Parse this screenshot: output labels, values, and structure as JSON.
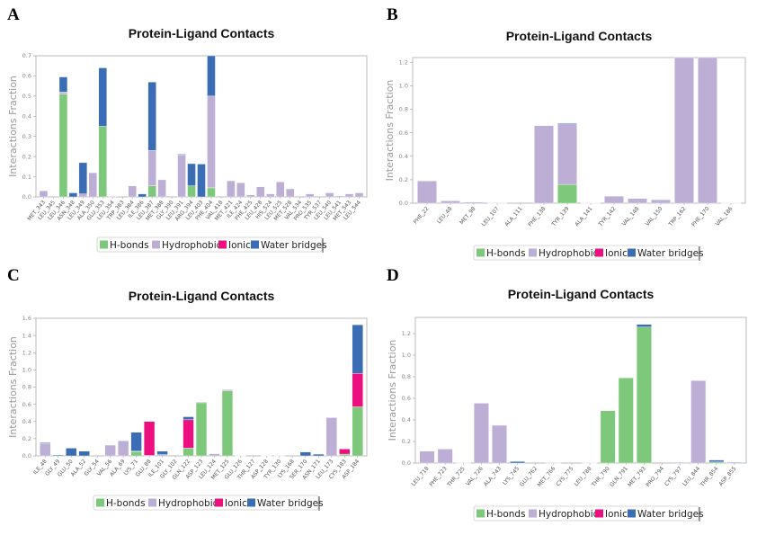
{
  "colors": {
    "H-bonds": "#7dc87b",
    "Hydrophobic": "#bcaed4",
    "Ionic": "#ec0f7f",
    "Water bridges": "#3a6db3"
  },
  "chart_data": [
    {
      "panel": "A",
      "type": "bar",
      "stacked": true,
      "title": "Protein-Ligand Contacts",
      "xlabel": "",
      "ylabel": "Interactions Fraction",
      "ylim": [
        0,
        0.7
      ],
      "yticks": [
        "0.0",
        "0.1",
        "0.2",
        "0.3",
        "0.4",
        "0.5",
        "0.6",
        "0.7"
      ],
      "legend": [
        "H-bonds",
        "Hydrophobic",
        "Ionic",
        "Water bridges"
      ],
      "legend_placement": "bottom-center",
      "categories": [
        "MET_343",
        "LEU_345",
        "LEU_346",
        "ASN_348",
        "LEU_349",
        "ALA_350",
        "GLU_353",
        "LEU_354",
        "TRP_383",
        "LEU_384",
        "ILE_386",
        "LEU_387",
        "MET_388",
        "GLY_390",
        "LEU_391",
        "ARG_394",
        "LEU_403",
        "PHE_404",
        "VAL_418",
        "MET_421",
        "ILE_424",
        "PHE_425",
        "LEU_428",
        "HIS_524",
        "LEU_525",
        "MET_528",
        "VAL_534",
        "PRO_535",
        "TYR_537",
        "LEU_540",
        "LEU_541",
        "MET_543",
        "LEU_544"
      ],
      "series": [
        {
          "name": "H-bonds",
          "values": [
            0,
            0,
            0.51,
            0,
            0,
            0,
            0.35,
            0,
            0,
            0,
            0,
            0.055,
            0,
            0,
            0,
            0.055,
            0,
            0.045,
            0,
            0,
            0,
            0,
            0,
            0,
            0,
            0,
            0,
            0,
            0,
            0,
            0,
            0,
            0
          ]
        },
        {
          "name": "Hydrophobic",
          "values": [
            0.03,
            0,
            0.01,
            0,
            0.015,
            0.12,
            0,
            0.003,
            0,
            0.055,
            0,
            0.175,
            0.085,
            0,
            0.208,
            0,
            0,
            0.455,
            0,
            0.08,
            0.07,
            0.01,
            0.05,
            0.015,
            0.075,
            0.04,
            0,
            0.015,
            0,
            0.02,
            0.005,
            0.015,
            0.02
          ]
        },
        {
          "name": "Ionic",
          "values": [
            0,
            0,
            0,
            0,
            0,
            0,
            0,
            0,
            0,
            0,
            0,
            0,
            0,
            0,
            0,
            0,
            0,
            0,
            0,
            0,
            0,
            0,
            0,
            0,
            0,
            0,
            0,
            0,
            0,
            0,
            0,
            0,
            0
          ]
        },
        {
          "name": "Water bridges",
          "values": [
            0,
            0,
            0.075,
            0.02,
            0.155,
            0,
            0.29,
            0,
            0,
            0,
            0.015,
            0.34,
            0,
            0,
            0.004,
            0.11,
            0.163,
            0.2,
            0,
            0,
            0,
            0,
            0,
            0,
            0,
            0,
            0,
            0,
            0,
            0,
            0,
            0,
            0
          ]
        }
      ]
    },
    {
      "panel": "B",
      "type": "bar",
      "stacked": true,
      "title": "Protein-Ligand Contacts",
      "xlabel": "",
      "ylabel": "Interactions Fraction",
      "ylim": [
        0,
        1.24
      ],
      "yticks": [
        "0.0",
        "0.2",
        "0.4",
        "0.6",
        "0.8",
        "1.0",
        "1.2"
      ],
      "legend": [
        "H-bonds",
        "Hydrophobic",
        "Ionic",
        "Water bridges"
      ],
      "legend_placement": "bottom-center",
      "categories": [
        "PHE_22",
        "LEU_48",
        "MET_98",
        "LEU_107",
        "ALA_111",
        "PHE_138",
        "TYR_139",
        "ALA_141",
        "TYR_142",
        "VAL_148",
        "VAL_150",
        "TRP_162",
        "PHE_170",
        "VAL_186"
      ],
      "series": [
        {
          "name": "H-bonds",
          "values": [
            0,
            0,
            0,
            0,
            0,
            0,
            0.16,
            0,
            0,
            0,
            0,
            0,
            0,
            0
          ]
        },
        {
          "name": "Hydrophobic",
          "values": [
            0.19,
            0.02,
            0.01,
            0.003,
            0,
            0.66,
            0.515,
            0.002,
            0.06,
            0.04,
            0.03,
            1.3,
            1.3,
            0.002
          ]
        },
        {
          "name": "Ionic",
          "values": [
            0,
            0,
            0,
            0,
            0,
            0,
            0,
            0,
            0,
            0,
            0,
            0,
            0,
            0
          ]
        },
        {
          "name": "Water bridges",
          "values": [
            0,
            0,
            0,
            0,
            0,
            0,
            0.007,
            0,
            0,
            0,
            0,
            0,
            0,
            0
          ]
        }
      ]
    },
    {
      "panel": "C",
      "type": "bar",
      "stacked": true,
      "title": "Protein-Ligand Contacts",
      "xlabel": "",
      "ylabel": "Interactions Fraction",
      "ylim": [
        0,
        1.6
      ],
      "yticks": [
        "0.0",
        "0.2",
        "0.4",
        "0.6",
        "0.8",
        "1.0",
        "1.2",
        "1.4",
        "1.6"
      ],
      "legend": [
        "H-bonds",
        "Hydrophobic",
        "Ionic",
        "Water bridges"
      ],
      "legend_placement": "bottom-center",
      "categories": [
        "ILE_48",
        "GLY_49",
        "GLU_50",
        "ALA_52",
        "GLY_54",
        "VAL_56",
        "ALA_69",
        "LYS_71",
        "GLU_88",
        "ILE_101",
        "GLY_102",
        "GLN_122",
        "ASP_123",
        "LEU_124",
        "MET_125",
        "GLU_126",
        "THR_127",
        "ASP_128",
        "TYR_130",
        "LYS_168",
        "SER_170",
        "ASN_171",
        "LEU_173",
        "CYS_183",
        "ASP_184"
      ],
      "series": [
        {
          "name": "H-bonds",
          "values": [
            0,
            0,
            0,
            0,
            0,
            0,
            0,
            0.05,
            0,
            0,
            0,
            0.09,
            0.62,
            0,
            0.755,
            0,
            0,
            0,
            0,
            0,
            0,
            0,
            0,
            0.02,
            0.57
          ]
        },
        {
          "name": "Hydrophobic",
          "values": [
            0.145,
            0,
            0,
            0,
            0,
            0.125,
            0.175,
            0.005,
            0.005,
            0.015,
            0,
            0,
            0,
            0.025,
            0.015,
            0.003,
            0,
            0.003,
            0.003,
            0,
            0,
            0,
            0.445,
            0,
            0
          ]
        },
        {
          "name": "Ionic",
          "values": [
            0,
            0,
            0,
            0,
            0,
            0,
            0,
            0,
            0.395,
            0,
            0,
            0.33,
            0,
            0,
            0,
            0,
            0,
            0,
            0,
            0,
            0,
            0,
            0,
            0.06,
            0.39
          ]
        },
        {
          "name": "Water bridges",
          "values": [
            0.01,
            0.01,
            0.09,
            0.055,
            0,
            0,
            0,
            0.22,
            0,
            0.04,
            0,
            0.035,
            0.003,
            0,
            0,
            0,
            0,
            0,
            0,
            0,
            0.045,
            0.02,
            0,
            0,
            0.565
          ]
        }
      ]
    },
    {
      "panel": "D",
      "type": "bar",
      "stacked": true,
      "title": "Protein-Ligand Contacts",
      "xlabel": "",
      "ylabel": "Interactions Fraction",
      "ylim": [
        0,
        1.35
      ],
      "yticks": [
        "0.0",
        "0.2",
        "0.4",
        "0.6",
        "0.8",
        "1.0",
        "1.2"
      ],
      "legend": [
        "H-bonds",
        "Hydrophobic",
        "Ionic",
        "Water bridges"
      ],
      "legend_placement": "bottom-center",
      "categories": [
        "LEU_718",
        "PHE_723",
        "THR_725",
        "VAL_726",
        "ALA_743",
        "LYS_745",
        "GLU_762",
        "MET_766",
        "CYS_775",
        "LEU_788",
        "THR_790",
        "GLN_791",
        "MET_793",
        "PRO_794",
        "CYS_797",
        "LEU_844",
        "THR_854",
        "ASP_855"
      ],
      "series": [
        {
          "name": "H-bonds",
          "values": [
            0,
            0,
            0,
            0,
            0,
            0,
            0,
            0,
            0,
            0,
            0.485,
            0.79,
            1.26,
            0,
            0,
            0,
            0.01,
            0
          ]
        },
        {
          "name": "Hydrophobic",
          "values": [
            0.11,
            0.13,
            0.003,
            0.555,
            0.35,
            0,
            0,
            0.004,
            0,
            0.003,
            0,
            0,
            0,
            0,
            0.008,
            0.765,
            0,
            0
          ]
        },
        {
          "name": "Ionic",
          "values": [
            0,
            0,
            0,
            0,
            0,
            0,
            0,
            0,
            0,
            0,
            0,
            0,
            0,
            0,
            0,
            0,
            0,
            0
          ]
        },
        {
          "name": "Water bridges",
          "values": [
            0,
            0,
            0,
            0,
            0,
            0.015,
            0,
            0,
            0,
            0,
            0,
            0,
            0.025,
            0,
            0,
            0,
            0.018,
            0.006
          ]
        }
      ]
    }
  ]
}
